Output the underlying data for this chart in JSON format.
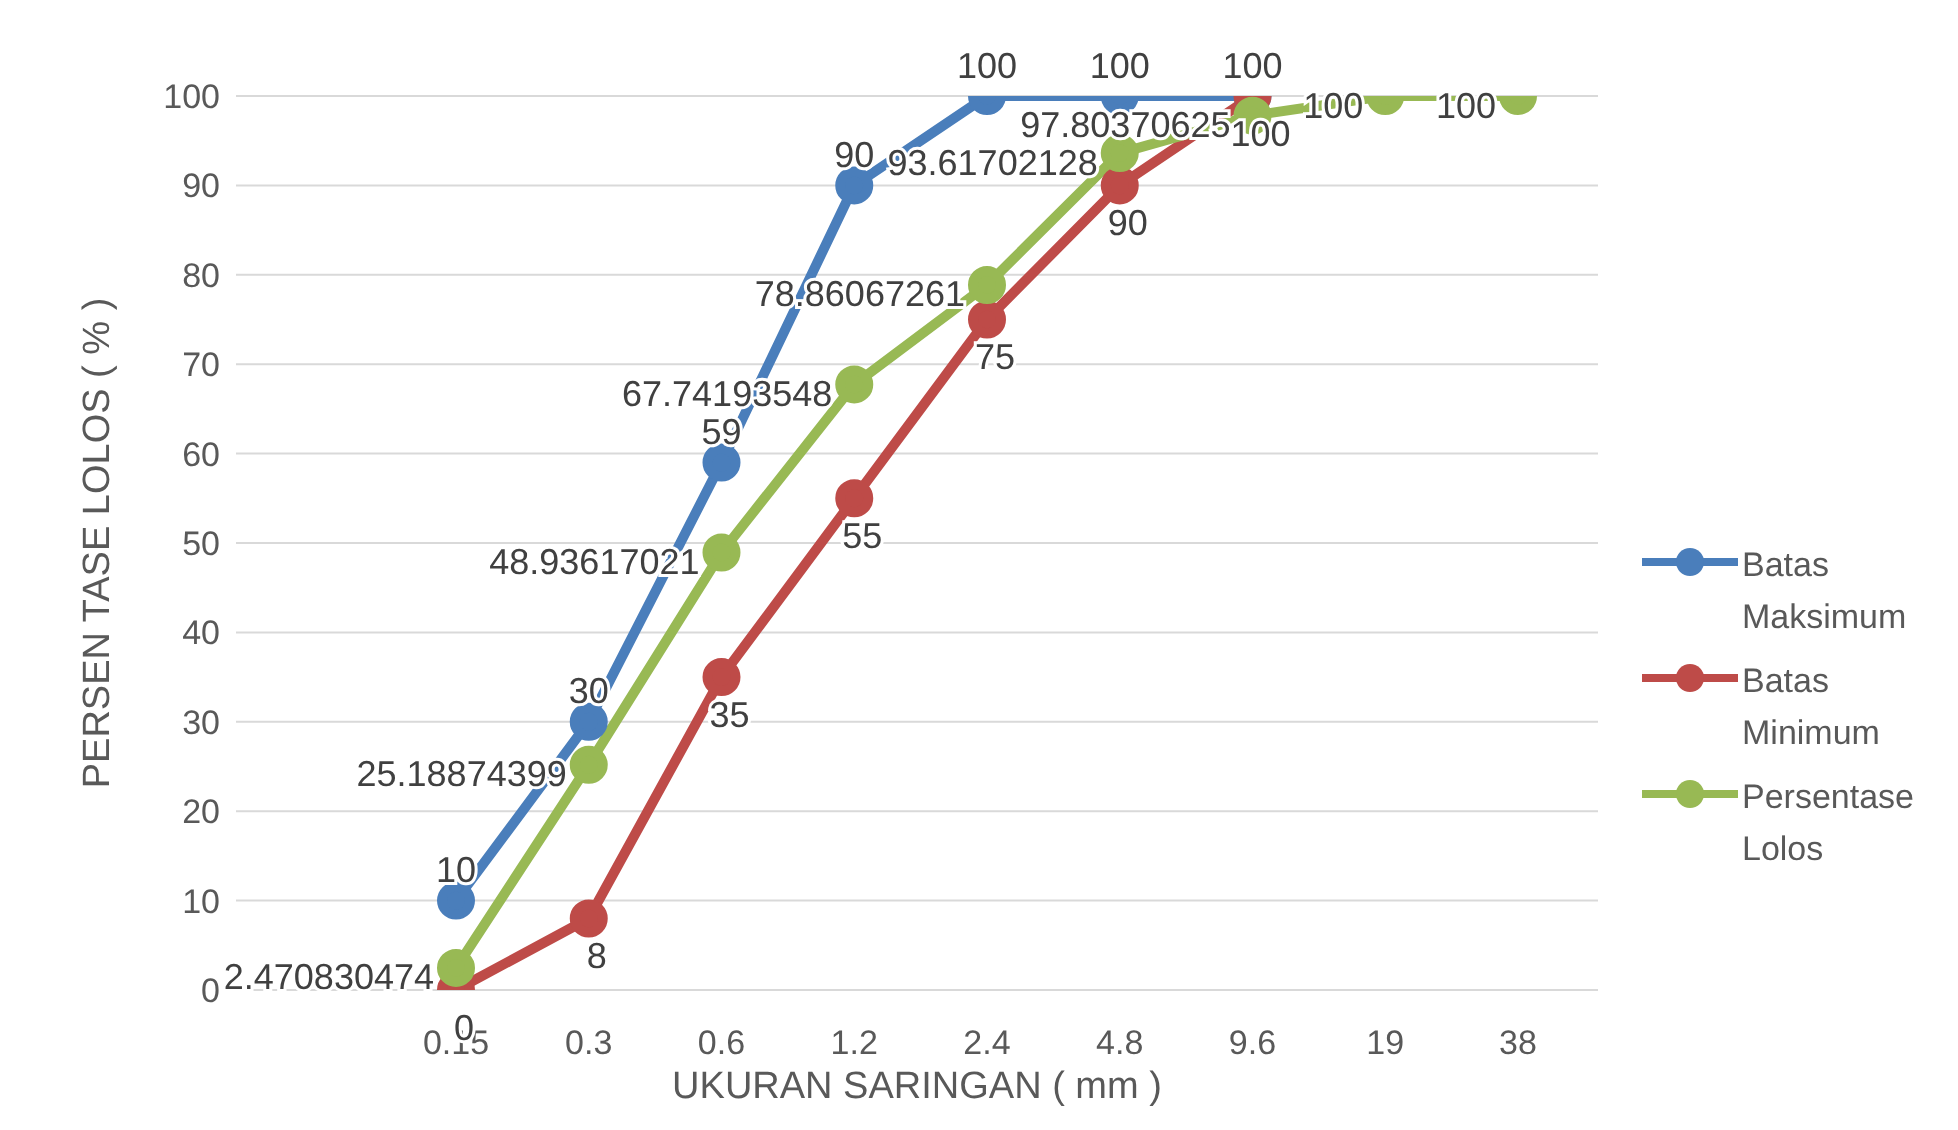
{
  "chart_data": {
    "type": "line",
    "xlabel": "UKURAN SARINGAN ( mm )",
    "ylabel": "PERSEN TASE LOLOS ( % )",
    "categories": [
      "0.15",
      "0.3",
      "0.6",
      "1.2",
      "2.4",
      "4.8",
      "9.6",
      "19",
      "38"
    ],
    "series": [
      {
        "name": "Batas Maksimum",
        "color": "#4a7ebb",
        "values": [
          10,
          30,
          59,
          90,
          100,
          100,
          100,
          null,
          null
        ]
      },
      {
        "name": "Batas Minimum",
        "color": "#be4b48",
        "values": [
          0,
          8,
          35,
          55,
          75,
          90,
          100,
          null,
          null
        ]
      },
      {
        "name": "Persentase Lolos",
        "color": "#98b954",
        "values": [
          2.470830474,
          25.18874399,
          48.93617021,
          67.74193548,
          78.86067261,
          93.61702128,
          97.80370625,
          100,
          100
        ]
      }
    ],
    "ylim": [
      0,
      100
    ],
    "yticks": [
      0,
      10,
      20,
      30,
      40,
      50,
      60,
      70,
      80,
      90,
      100
    ],
    "grid": "y",
    "legend": "right",
    "marker": "circle",
    "line_style": "solid",
    "data_labels": true
  }
}
